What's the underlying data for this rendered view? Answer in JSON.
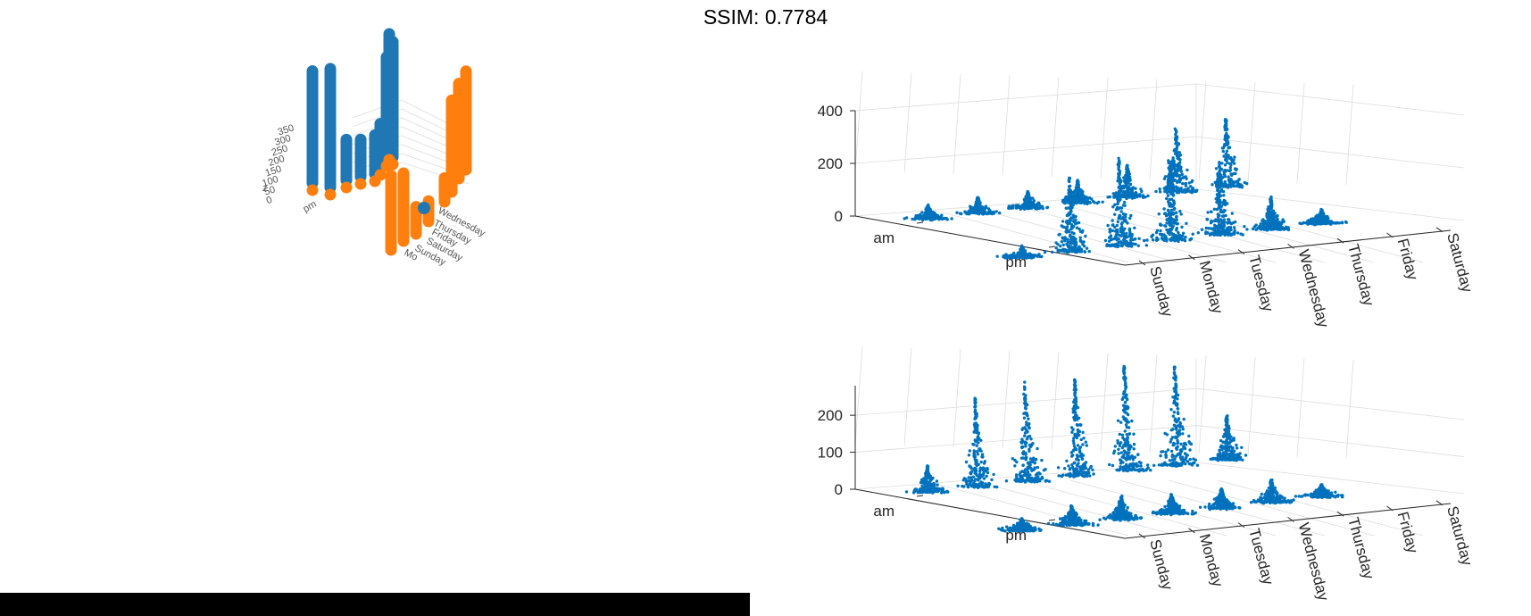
{
  "title": "SSIM: 0.7784",
  "colors": {
    "blue": "#1f77b4",
    "orange": "#ff7f0e",
    "matlab_blue": "#0072bd",
    "grid": "#dddddd",
    "axis": "#262626",
    "tick_text": "#555555"
  },
  "chart_data": [
    {
      "type": "bar",
      "subtype": "3d-bar",
      "zlabel": "z",
      "z_ticks": [
        "350",
        "300",
        "250",
        "200",
        "150",
        "100",
        "50",
        "0"
      ],
      "x_ticks": [
        "Wednesday",
        "Thursday",
        "Friday",
        "Saturday",
        "Sunday",
        "Mo"
      ],
      "y_ticks": [
        "pm"
      ],
      "series": [
        {
          "values": [
            330,
            350,
            120,
            110,
            115,
            130,
            300,
            340,
            350
          ]
        },
        {
          "values": [
            220,
            200,
            80,
            60,
            70,
            270,
            280,
            290
          ]
        }
      ]
    },
    {
      "type": "scatter",
      "subtype": "3d-swarm",
      "zlim": [
        0,
        400
      ],
      "z_ticks": [
        "0",
        "200",
        "400"
      ],
      "x_ticks": [
        "Sunday",
        "Monday",
        "Tuesday",
        "Wednesday",
        "Thursday",
        "Friday",
        "Saturday"
      ],
      "y_ticks": [
        "am",
        "pm"
      ],
      "am_peaks": [
        50,
        60,
        60,
        80,
        120,
        240,
        260
      ],
      "pm_peaks": [
        40,
        280,
        330,
        310,
        280,
        120,
        50
      ]
    },
    {
      "type": "scatter",
      "subtype": "3d-swarm",
      "zlim": [
        0,
        280
      ],
      "z_ticks": [
        "0",
        "100",
        "200"
      ],
      "x_ticks": [
        "Sunday",
        "Monday",
        "Tuesday",
        "Wednesday",
        "Thursday",
        "Friday",
        "Saturday"
      ],
      "y_ticks": [
        "am",
        "pm"
      ],
      "am_peaks": [
        70,
        240,
        270,
        265,
        290,
        270,
        120
      ],
      "pm_peaks": [
        30,
        50,
        60,
        50,
        50,
        60,
        30
      ]
    }
  ]
}
